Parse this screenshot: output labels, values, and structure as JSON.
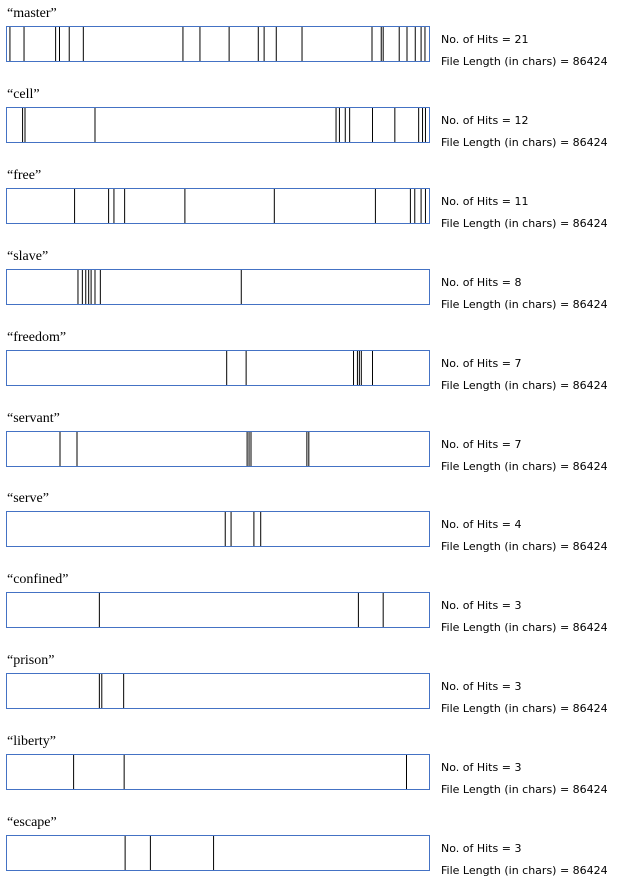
{
  "chart_data": {
    "type": "dispersion",
    "hits_label": "No. of Hits = ",
    "length_label": "File Length (in chars) = ",
    "file_length": 86424,
    "xlim": [
      0,
      86424
    ],
    "terms": [
      {
        "term": "“master”",
        "hits": 21,
        "positions": [
          400,
          3300,
          9800,
          10600,
          12600,
          15500,
          36000,
          39500,
          45500,
          51500,
          52700,
          55200,
          60500,
          74900,
          76800,
          77200,
          80500,
          82100,
          83800,
          85000,
          85800
        ]
      },
      {
        "term": "“cell”",
        "hits": 12,
        "positions": [
          3000,
          3500,
          17900,
          67500,
          68200,
          69400,
          70300,
          75000,
          79600,
          84500,
          85300,
          85900
        ]
      },
      {
        "term": "“free”",
        "hits": 11,
        "positions": [
          13700,
          20700,
          21800,
          24000,
          36400,
          54800,
          75600,
          82800,
          83700,
          85000,
          85900
        ]
      },
      {
        "term": "“slave”",
        "hits": 8,
        "positions": [
          14400,
          15300,
          16000,
          16600,
          17100,
          17900,
          19000,
          48000
        ]
      },
      {
        "term": "“freedom”",
        "hits": 7,
        "positions": [
          45000,
          49000,
          71100,
          71900,
          72300,
          72700,
          75000
        ]
      },
      {
        "term": "“servant”",
        "hits": 7,
        "positions": [
          10700,
          14200,
          49200,
          49600,
          50000,
          61500,
          61900
        ]
      },
      {
        "term": "“serve”",
        "hits": 4,
        "positions": [
          44700,
          45900,
          50600,
          52000
        ]
      },
      {
        "term": "“confined”",
        "hits": 3,
        "positions": [
          18800,
          72100,
          77200
        ]
      },
      {
        "term": "“prison”",
        "hits": 3,
        "positions": [
          18800,
          19300,
          23800
        ]
      },
      {
        "term": "“liberty”",
        "hits": 3,
        "positions": [
          13500,
          23900,
          82000
        ]
      },
      {
        "term": "“escape”",
        "hits": 3,
        "positions": [
          24100,
          29300,
          42300
        ]
      }
    ]
  }
}
